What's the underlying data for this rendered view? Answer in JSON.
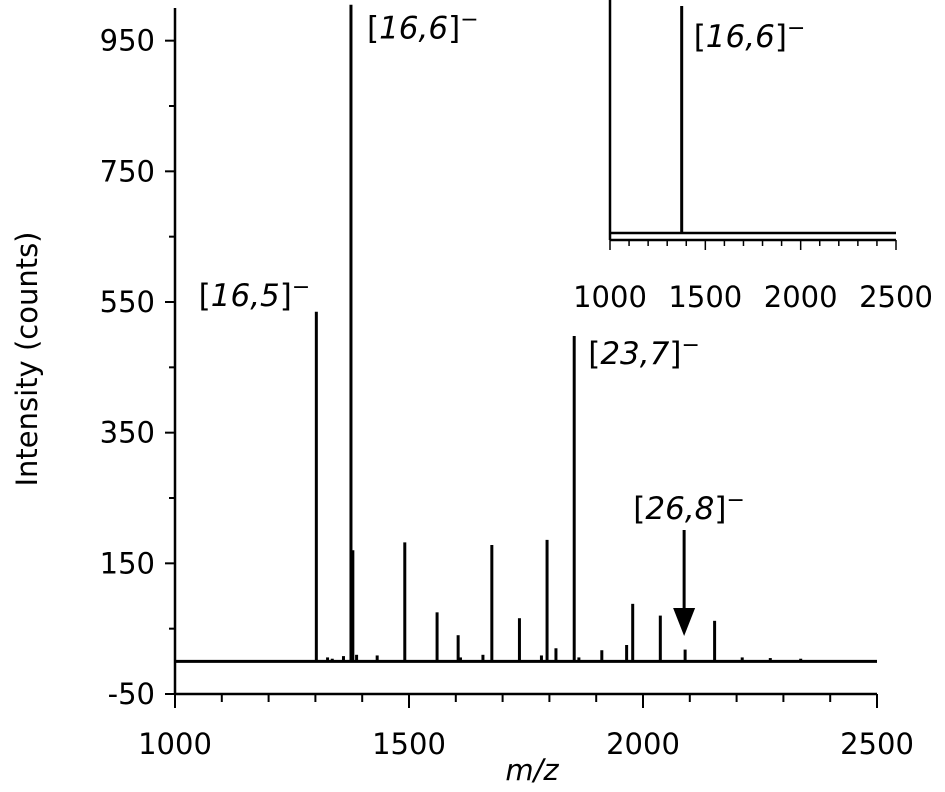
{
  "chart_data": [
    {
      "type": "line",
      "title": "",
      "xlabel": "m/z",
      "ylabel": "Intensity (counts)",
      "xlim": [
        1000,
        2500
      ],
      "ylim": [
        -50,
        1000
      ],
      "x_ticks": [
        1000,
        1500,
        2000,
        2500
      ],
      "x_tick_labels": [
        "1000",
        "1500",
        "2000",
        "2500"
      ],
      "y_ticks": [
        -50,
        150,
        350,
        550,
        750,
        950
      ],
      "y_tick_labels": [
        "-50",
        "150",
        "350",
        "550",
        "750",
        "950"
      ],
      "grid": false,
      "baseline": 0,
      "series": [
        {
          "x": [
            1302,
            1326,
            1336,
            1360,
            1376,
            1380,
            1388,
            1432,
            1491,
            1560,
            1605,
            1610,
            1658,
            1677,
            1736,
            1783,
            1795,
            1814,
            1853,
            1863,
            1912,
            1965,
            1978,
            2037,
            2090,
            2153,
            2212,
            2272,
            2337
          ],
          "y": [
            535,
            6,
            4,
            8,
            1005,
            170,
            10,
            9,
            182,
            75,
            40,
            6,
            10,
            178,
            66,
            9,
            186,
            20,
            498,
            6,
            17,
            25,
            88,
            70,
            18,
            62,
            6,
            5,
            4
          ]
        }
      ],
      "annotations": [
        {
          "x": 1302,
          "y": 535,
          "name": "16,5",
          "charge": "−"
        },
        {
          "x": 1376,
          "y": 1005,
          "name": "16,6",
          "charge": "−"
        },
        {
          "x": 1853,
          "y": 498,
          "name": "23,7",
          "charge": "−"
        },
        {
          "x": 2090,
          "y": 18,
          "name": "26,8",
          "charge": "−",
          "arrow": true
        }
      ]
    },
    {
      "type": "line",
      "inset": true,
      "xlim": [
        1000,
        2500
      ],
      "ylim": [
        -50,
        1000
      ],
      "x_ticks": [
        1000,
        1500,
        2000,
        2500
      ],
      "x_tick_labels": [
        "1000",
        "1500",
        "2000",
        "2500"
      ],
      "series": [
        {
          "x": [
            1376
          ],
          "y": [
            1005
          ]
        }
      ],
      "annotations": [
        {
          "x": 1376,
          "y": 1005,
          "name": "16,6",
          "charge": "−"
        }
      ]
    }
  ]
}
